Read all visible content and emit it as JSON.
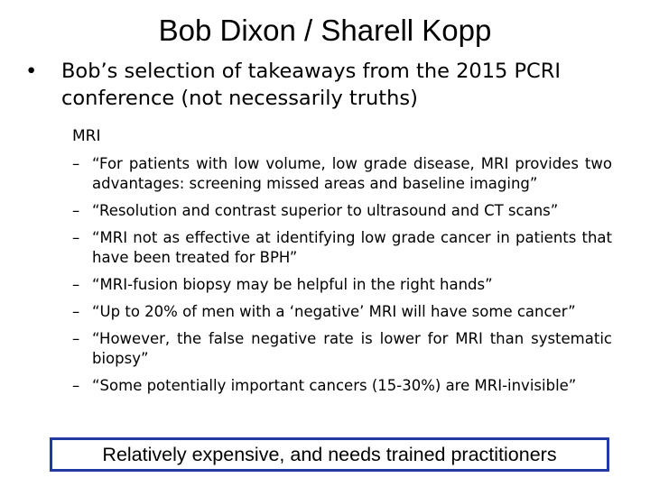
{
  "title": "Bob Dixon / Sharell Kopp",
  "main_bullet": {
    "marker": "•",
    "text": "Bob’s selection of takeaways from the 2015 PCRI conference (not necessarily truths)"
  },
  "section_label": "MRI",
  "items": [
    {
      "marker": "–",
      "text": "“For patients with low volume, low grade disease, MRI provides two advantages: screening missed areas and baseline imaging”"
    },
    {
      "marker": "–",
      "text": "“Resolution and contrast superior to ultrasound and CT scans”"
    },
    {
      "marker": "–",
      "text": "“MRI not as effective at identifying low grade cancer in patients that have been treated for BPH”"
    },
    {
      "marker": "–",
      "text": "“MRI-fusion biopsy may be helpful in the right hands”"
    },
    {
      "marker": "–",
      "text": "“Up to 20% of men with a ‘negative’ MRI will have some cancer”"
    },
    {
      "marker": "–",
      "text": "“However, the false negative rate is lower for MRI than systematic biopsy”"
    },
    {
      "marker": "–",
      "text": "“Some potentially important cancers (15-30%) are MRI-invisible”"
    }
  ],
  "callout": "Relatively expensive, and needs trained practitioners",
  "colors": {
    "callout_border": "#1f3aa0",
    "text": "#000000",
    "background": "#ffffff"
  }
}
